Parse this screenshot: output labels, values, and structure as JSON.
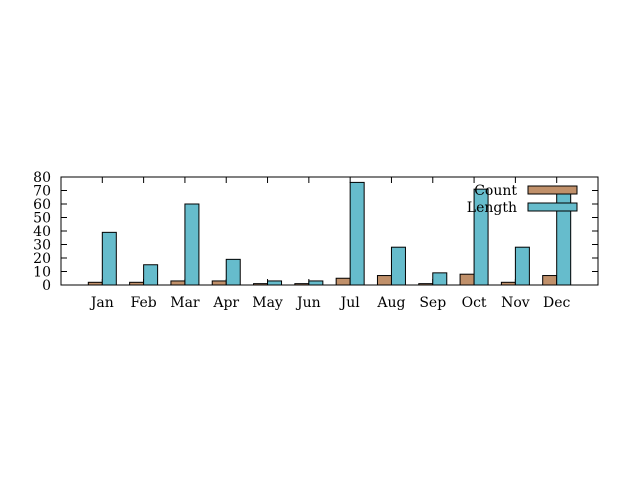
{
  "chart_data": {
    "type": "bar",
    "title": "",
    "xlabel": "",
    "ylabel": "",
    "categories": [
      "Jan",
      "Feb",
      "Mar",
      "Apr",
      "May",
      "Jun",
      "Jul",
      "Aug",
      "Sep",
      "Oct",
      "Nov",
      "Dec"
    ],
    "series": [
      {
        "name": "Count",
        "color": "#c0906a",
        "values": [
          2,
          2,
          3,
          3,
          1,
          1,
          5,
          7,
          1,
          8,
          2,
          7
        ]
      },
      {
        "name": "Length",
        "color": "#66bccc",
        "values": [
          39,
          15,
          60,
          19,
          3,
          3,
          76,
          28,
          9,
          71,
          28,
          68
        ]
      }
    ],
    "ylim": [
      0,
      80
    ],
    "yticks": [
      0,
      10,
      20,
      30,
      40,
      50,
      60,
      70,
      80
    ],
    "grid": false,
    "legend_position": "top-right"
  }
}
